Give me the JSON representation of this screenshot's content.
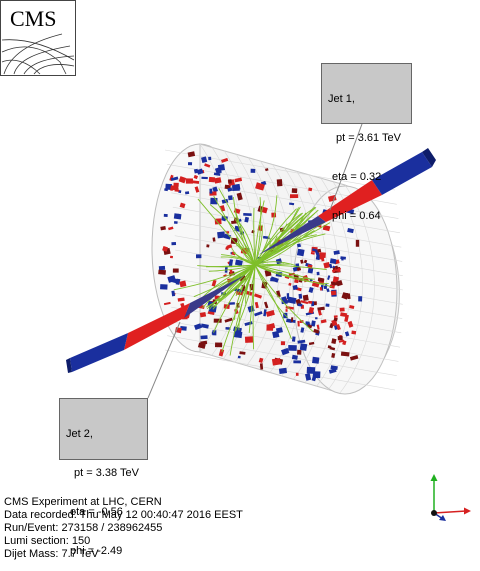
{
  "logo": {
    "text": "CMS"
  },
  "jet1": {
    "title": "Jet 1,",
    "pt": "pt = 3.61 TeV",
    "eta": "eta = 0.32",
    "phi": "phi = 0.64"
  },
  "jet2": {
    "title": "Jet 2,",
    "pt": "pt = 3.38 TeV",
    "eta": "eta = -0.56",
    "phi": "phi = -2.49"
  },
  "info": {
    "experiment": "CMS Experiment at LHC, CERN",
    "date": "Data recorded: Thu May 12 00:40:47 2016 EEST",
    "run": "Run/Event: 273158 / 238962455",
    "lumi": "Lumi section: 150",
    "mass": "Dijet Mass: 7.7 TeV"
  },
  "colors": {
    "ecal": "#d42020",
    "hcal": "#1a2f9e",
    "darkred": "#7a1010",
    "tracks": "#7fbf2a",
    "box": "#c8c8c8",
    "axis_x": "#d62020",
    "axis_y": "#20b020",
    "axis_z": "#1a2f9e"
  }
}
